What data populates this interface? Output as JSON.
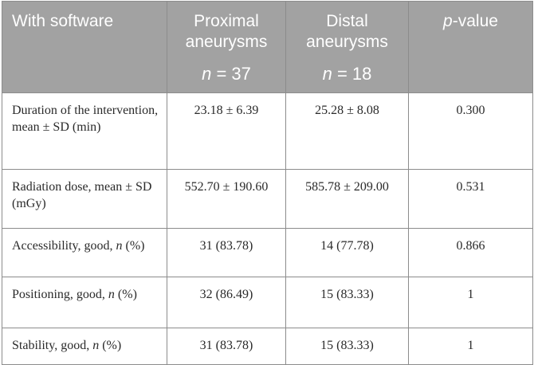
{
  "table": {
    "headers": {
      "col1": "With software",
      "col2_line1": "Proximal",
      "col2_line2": "aneurysms",
      "col2_n_var": "n",
      "col2_n_rest": " = 37",
      "col3_line1": "Distal",
      "col3_line2": "aneurysms",
      "col3_n_var": "n",
      "col3_n_rest": " = 18",
      "col4_p": "p",
      "col4_rest": "-value"
    },
    "rows": [
      {
        "label": "Duration of the intervention, mean ± SD (min)",
        "proximal": "23.18 ± 6.39",
        "distal": "25.28 ± 8.08",
        "p_value": "0.300"
      },
      {
        "label": "Radiation dose, mean ± SD (mGy)",
        "proximal": "552.70 ± 190.60",
        "distal": "585.78 ± 209.00",
        "p_value": "0.531"
      },
      {
        "label_pre": "Accessibility, good, ",
        "label_n": "n",
        "label_post": " (%)",
        "proximal": "31 (83.78)",
        "distal": "14 (77.78)",
        "p_value": "0.866"
      },
      {
        "label_pre": "Positioning, good, ",
        "label_n": "n",
        "label_post": " (%)",
        "proximal": "32 (86.49)",
        "distal": "15 (83.33)",
        "p_value": "1"
      },
      {
        "label_pre": "Stability, good, ",
        "label_n": "n",
        "label_post": " (%)",
        "proximal": "31 (83.78)",
        "distal": "15 (83.33)",
        "p_value": "1"
      }
    ],
    "colors": {
      "header_bg": "#a2a2a2",
      "header_text": "#ffffff",
      "border": "#8c8c8c",
      "body_text": "#2a2a2a"
    }
  }
}
